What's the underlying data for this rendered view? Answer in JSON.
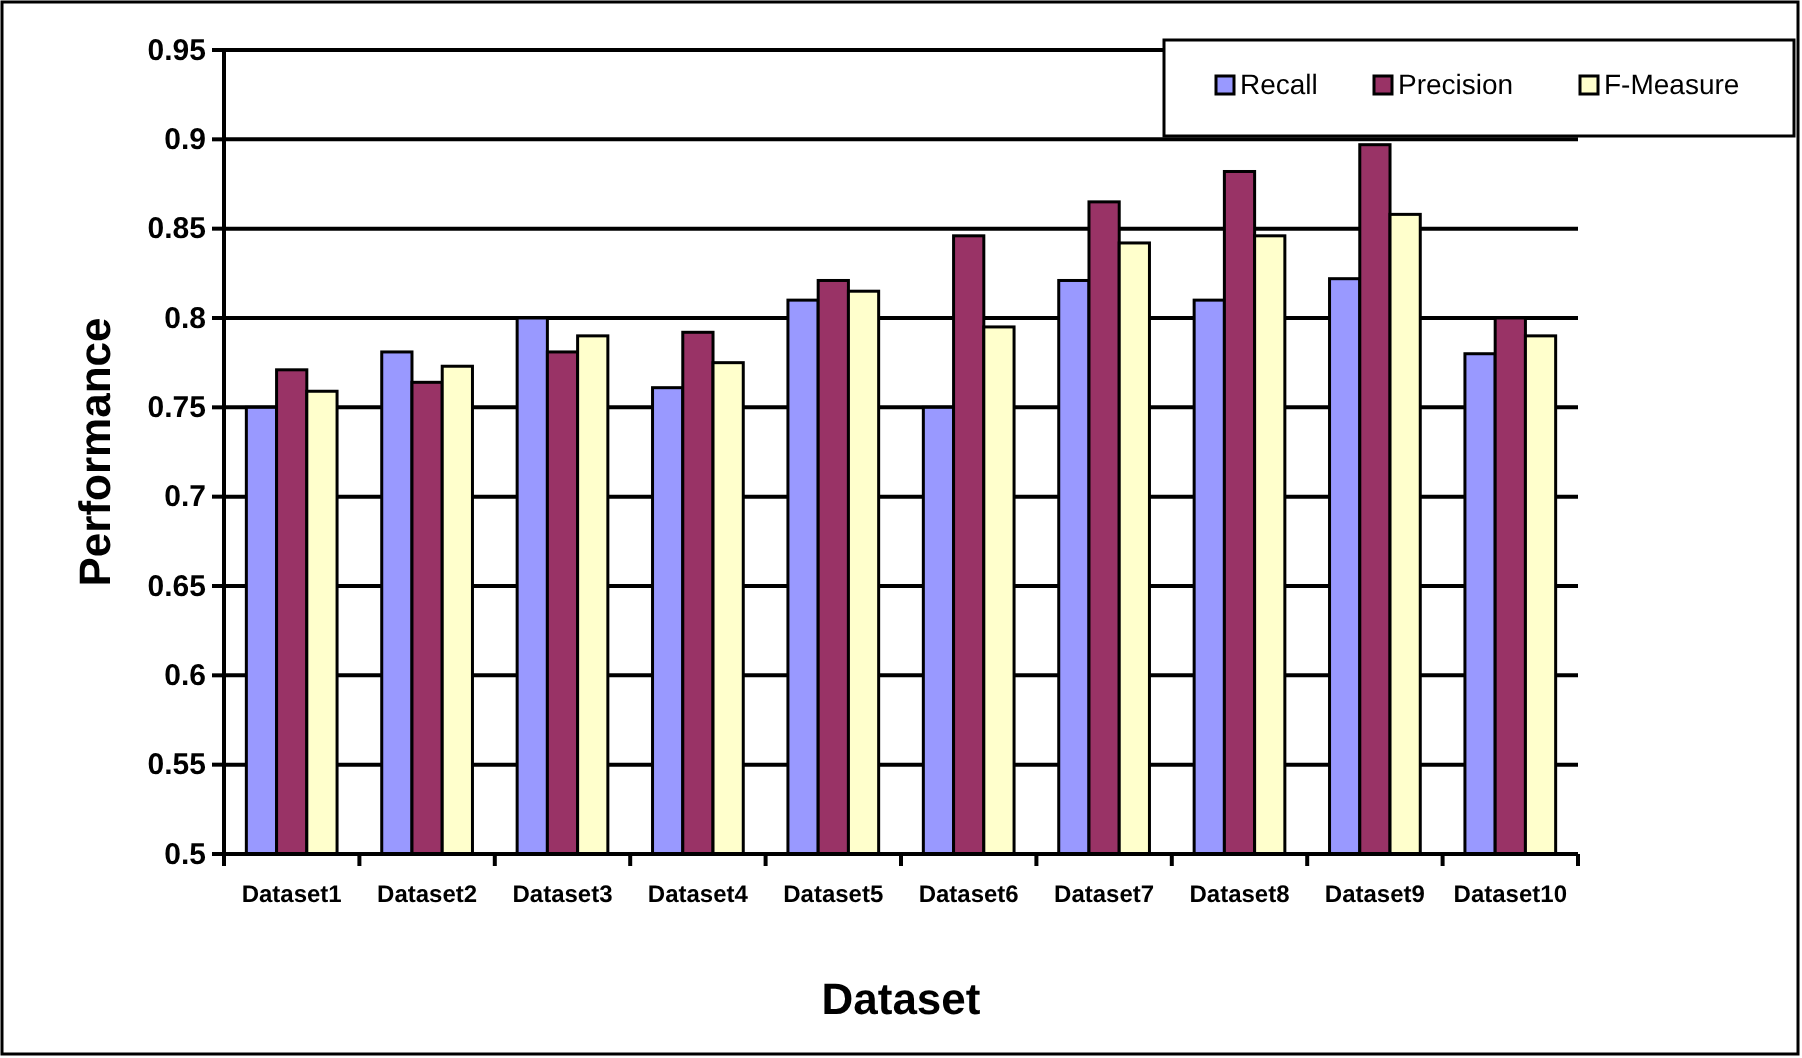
{
  "chart_data": {
    "type": "bar",
    "xlabel": "Dataset",
    "ylabel": "Performance",
    "categories": [
      "Dataset1",
      "Dataset2",
      "Dataset3",
      "Dataset4",
      "Dataset5",
      "Dataset6",
      "Dataset7",
      "Dataset8",
      "Dataset9",
      "Dataset10"
    ],
    "series": [
      {
        "name": "Recall",
        "color": "#9999ff",
        "values": [
          0.75,
          0.781,
          0.8,
          0.761,
          0.81,
          0.75,
          0.821,
          0.81,
          0.822,
          0.78
        ]
      },
      {
        "name": "Precision",
        "color": "#993366",
        "values": [
          0.771,
          0.764,
          0.781,
          0.792,
          0.821,
          0.846,
          0.865,
          0.882,
          0.897,
          0.8
        ]
      },
      {
        "name": "F-Measure",
        "color": "#ffffcc",
        "values": [
          0.759,
          0.773,
          0.79,
          0.775,
          0.815,
          0.795,
          0.842,
          0.846,
          0.858,
          0.79
        ]
      }
    ],
    "ylim": [
      0.5,
      0.95
    ],
    "yticks": [
      0.5,
      0.55,
      0.6,
      0.65,
      0.7,
      0.75,
      0.8,
      0.85,
      0.9,
      0.95
    ],
    "grid": "y",
    "legend": "top right"
  }
}
